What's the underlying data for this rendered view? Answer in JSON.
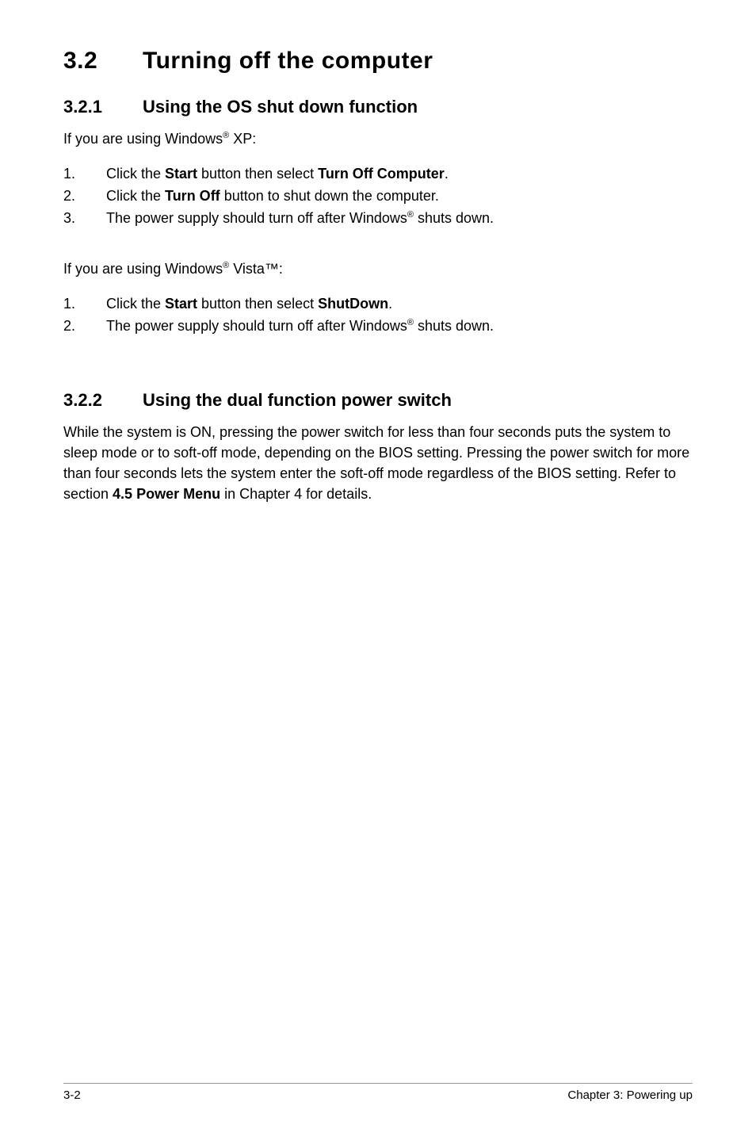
{
  "heading": {
    "number": "3.2",
    "title": "Turning off the computer"
  },
  "section1": {
    "number": "3.2.1",
    "title": "Using the OS shut down function",
    "intro_prefix": "If you are using Windows",
    "intro_sup": "®",
    "intro_suffix": " XP:",
    "list": {
      "i1": {
        "n": "1.",
        "pre": "Click the ",
        "b1": "Start",
        "mid": " button then select ",
        "b2": "Turn Off Computer",
        "post": "."
      },
      "i2": {
        "n": "2.",
        "pre": "Click the ",
        "b1": "Turn Off",
        "post": " button to shut down the computer."
      },
      "i3": {
        "n": "3.",
        "pre": "The power supply should turn off after Windows",
        "sup": "®",
        "post": " shuts down."
      }
    },
    "intro2_prefix": "If you are using Windows",
    "intro2_sup": "®",
    "intro2_suffix": " Vista™:",
    "list2": {
      "i1": {
        "n": "1.",
        "pre": "Click the ",
        "b1": "Start",
        "mid": " button then select ",
        "b2": "ShutDown",
        "post": "."
      },
      "i2": {
        "n": "2.",
        "pre": "The power supply should turn off after Windows",
        "sup": "®",
        "post": " shuts down."
      }
    }
  },
  "section2": {
    "number": "3.2.2",
    "title": "Using the dual function power switch",
    "para_pre": "While the system is ON, pressing the power switch for less than four seconds puts the system to sleep mode or to soft-off mode, depending on the BIOS setting. Pressing the power switch for more than four seconds lets the system enter the soft-off mode regardless of the BIOS setting. Refer to section ",
    "para_bold": "4.5 Power Menu",
    "para_post": " in Chapter 4 for details."
  },
  "footer": {
    "left": "3-2",
    "right": "Chapter 3: Powering up"
  }
}
